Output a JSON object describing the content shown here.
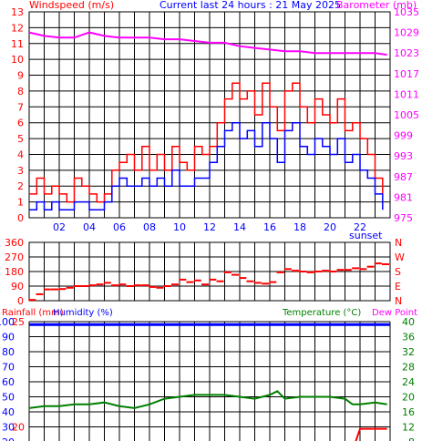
{
  "chart_data": [
    {
      "id": "wind-baro",
      "type": "line",
      "title": "Current last 24 hours : 21 May 2025",
      "left_label": "Windspeed (m/s)",
      "right_label": "Barometer (mb)",
      "left_ylim": [
        0,
        13
      ],
      "left_yticks": [
        "0",
        "1",
        "2",
        "3",
        "4",
        "5",
        "6",
        "7",
        "8",
        "9",
        "10",
        "11",
        "12",
        "13"
      ],
      "right_ylim": [
        975,
        1035
      ],
      "right_yticks": [
        "975",
        "981",
        "987",
        "993",
        "999",
        "1005",
        "1011",
        "1017",
        "1023",
        "1029",
        "1035"
      ],
      "xlim": [
        0,
        24
      ],
      "xticks": [
        "02",
        "04",
        "06",
        "08",
        "10",
        "12",
        "14",
        "16",
        "18",
        "20",
        "22"
      ],
      "annotation": "sunset",
      "grid": true,
      "colors": {
        "gust": "#ff0000",
        "wind": "#0000ff",
        "baro": "#ff00ff",
        "left_text": "#ff0000",
        "right_text": "#ff00ff",
        "title_text": "#0000ff"
      },
      "series": [
        {
          "key": "gust",
          "x": [
            0.0,
            0.5,
            1.0,
            1.5,
            2.0,
            2.5,
            3.0,
            3.5,
            4.0,
            4.5,
            5.0,
            5.5,
            6.0,
            6.5,
            7.0,
            7.5,
            8.0,
            8.5,
            9.0,
            9.5,
            10.0,
            10.5,
            11.0,
            11.5,
            12.0,
            12.5,
            13.0,
            13.5,
            14.0,
            14.5,
            15.0,
            15.5,
            16.0,
            16.5,
            17.0,
            17.5,
            18.0,
            18.5,
            19.0,
            19.5,
            20.0,
            20.5,
            21.0,
            21.5,
            22.0,
            22.5,
            23.0,
            23.5
          ],
          "values": [
            1.5,
            2.5,
            1.5,
            2.0,
            1.5,
            1.0,
            2.5,
            2.0,
            1.5,
            1.0,
            1.5,
            3.0,
            3.5,
            4.0,
            3.0,
            4.5,
            3.0,
            4.0,
            3.0,
            4.5,
            3.5,
            3.0,
            4.5,
            4.0,
            4.5,
            6.0,
            7.5,
            8.5,
            7.5,
            8.0,
            6.5,
            8.5,
            7.0,
            5.5,
            8.0,
            8.5,
            7.0,
            6.0,
            7.5,
            6.5,
            6.0,
            7.5,
            5.5,
            6.0,
            5.0,
            4.0,
            2.5,
            1.5
          ]
        },
        {
          "key": "wind",
          "x": [
            0.0,
            0.5,
            1.0,
            1.5,
            2.0,
            2.5,
            3.0,
            3.5,
            4.0,
            4.5,
            5.0,
            5.5,
            6.0,
            6.5,
            7.0,
            7.5,
            8.0,
            8.5,
            9.0,
            9.5,
            10.0,
            10.5,
            11.0,
            11.5,
            12.0,
            12.5,
            13.0,
            13.5,
            14.0,
            14.5,
            15.0,
            15.5,
            16.0,
            16.5,
            17.0,
            17.5,
            18.0,
            18.5,
            19.0,
            19.5,
            20.0,
            20.5,
            21.0,
            21.5,
            22.0,
            22.5,
            23.0,
            23.5
          ],
          "values": [
            0.5,
            1.0,
            0.5,
            1.0,
            0.5,
            0.5,
            1.0,
            1.0,
            0.5,
            0.5,
            1.0,
            2.0,
            2.5,
            2.0,
            2.0,
            2.5,
            2.0,
            2.5,
            2.0,
            3.0,
            2.0,
            2.0,
            2.5,
            2.5,
            3.5,
            4.5,
            5.5,
            6.0,
            5.0,
            5.5,
            4.5,
            6.0,
            5.0,
            3.5,
            5.5,
            6.0,
            4.5,
            4.0,
            5.0,
            4.5,
            4.0,
            5.0,
            3.5,
            4.0,
            3.0,
            2.5,
            1.5,
            0.5
          ]
        },
        {
          "key": "baro",
          "axis": "right",
          "x": [
            0,
            1,
            2,
            3,
            4,
            5,
            6,
            7,
            8,
            9,
            10,
            11,
            12,
            13,
            14,
            15,
            16,
            17,
            18,
            19,
            20,
            21,
            22,
            23,
            23.8
          ],
          "values": [
            1029,
            1028,
            1027.5,
            1027.5,
            1029,
            1028,
            1027.5,
            1027.5,
            1027.5,
            1027,
            1027,
            1026.5,
            1026,
            1026,
            1025,
            1024.5,
            1024,
            1023.5,
            1023.5,
            1023,
            1023,
            1023,
            1023,
            1023,
            1022.5
          ]
        }
      ]
    },
    {
      "id": "direction",
      "type": "scatter",
      "left_yticks": [
        "0",
        "90",
        "180",
        "270",
        "360"
      ],
      "right_yticks": [
        "N",
        "E",
        "S",
        "W",
        "N"
      ],
      "ylim": [
        0,
        360
      ],
      "xlim": [
        0,
        24
      ],
      "grid": true,
      "colors": {
        "points": "#ff0000",
        "left_text": "#ff0000",
        "right_text": "#ff0000"
      },
      "x": [
        0.2,
        0.7,
        1.2,
        1.7,
        2.2,
        2.7,
        3.2,
        3.7,
        4.2,
        4.7,
        5.2,
        5.7,
        6.2,
        6.7,
        7.2,
        7.7,
        8.2,
        8.7,
        9.2,
        9.7,
        10.2,
        10.7,
        11.2,
        11.7,
        12.2,
        12.7,
        13.2,
        13.7,
        14.2,
        14.7,
        15.2,
        15.7,
        16.2,
        16.7,
        17.2,
        17.7,
        18.2,
        18.7,
        19.2,
        19.7,
        20.2,
        20.7,
        21.2,
        21.7,
        22.2,
        22.7,
        23.2,
        23.7
      ],
      "values": [
        5,
        40,
        70,
        70,
        72,
        80,
        90,
        90,
        95,
        100,
        110,
        95,
        100,
        90,
        95,
        95,
        85,
        80,
        90,
        100,
        130,
        115,
        125,
        100,
        130,
        120,
        175,
        160,
        140,
        120,
        110,
        105,
        115,
        175,
        195,
        185,
        180,
        175,
        180,
        185,
        180,
        190,
        190,
        200,
        195,
        210,
        230,
        225
      ]
    },
    {
      "id": "temp-humidity",
      "type": "line",
      "left_label_rain": "Rainfall (mm)",
      "left_label_humidity": "Humidity (%)",
      "right_label_temp": "Temperature (°C)",
      "right_label_dew": "Dew Point",
      "rain_yticks": [
        "25",
        "20"
      ],
      "humidity_yticks": [
        "100",
        "90",
        "80",
        "70",
        "60",
        "50",
        "40",
        "30",
        "20"
      ],
      "temp_yticks": [
        "40",
        "36",
        "32",
        "28",
        "24",
        "20",
        "16",
        "12",
        "8"
      ],
      "xlim": [
        0,
        24
      ],
      "humidity_ylim": [
        20,
        100
      ],
      "temp_ylim": [
        8,
        40
      ],
      "grid": true,
      "colors": {
        "humidity": "#0000ff",
        "temp": "#008000",
        "dew": "#ff0000",
        "rain_text": "#ff0000",
        "humidity_text": "#0000ff",
        "temp_text": "#008000",
        "dew_text": "#ff00ff"
      },
      "series": [
        {
          "key": "humidity",
          "x": [
            0,
            24
          ],
          "values": [
            98,
            98
          ]
        },
        {
          "key": "temp",
          "x": [
            0,
            1,
            2,
            3,
            4,
            5,
            6,
            7,
            8,
            9,
            10,
            11,
            12,
            13,
            14,
            15,
            16,
            16.5,
            17,
            18,
            19,
            20,
            21,
            21.5,
            22,
            23,
            23.8
          ],
          "values": [
            17,
            17.5,
            17.5,
            18,
            18,
            18.5,
            17.5,
            17,
            18,
            19.5,
            20,
            20.5,
            20.5,
            20.5,
            20,
            19.5,
            20.5,
            21.5,
            19.5,
            20,
            20,
            20,
            19.5,
            18,
            18,
            18.5,
            18
          ]
        },
        {
          "key": "dew",
          "x": [
            21.7,
            22,
            23,
            23.8
          ],
          "values": [
            8,
            11.5,
            11.5,
            11.5
          ]
        }
      ]
    }
  ]
}
